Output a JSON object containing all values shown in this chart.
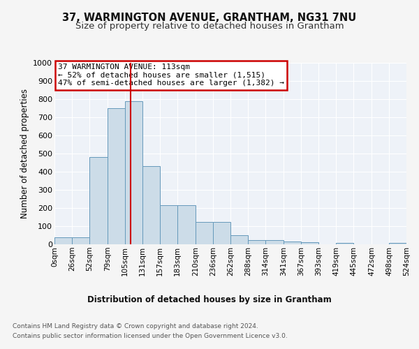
{
  "title": "37, WARMINGTON AVENUE, GRANTHAM, NG31 7NU",
  "subtitle": "Size of property relative to detached houses in Grantham",
  "xlabel": "Distribution of detached houses by size in Grantham",
  "ylabel": "Number of detached properties",
  "bin_edges": [
    0,
    26,
    52,
    79,
    105,
    131,
    157,
    183,
    210,
    236,
    262,
    288,
    314,
    341,
    367,
    393,
    419,
    445,
    472,
    498,
    524
  ],
  "bar_heights": [
    40,
    40,
    480,
    750,
    790,
    430,
    215,
    215,
    125,
    125,
    50,
    25,
    25,
    15,
    10,
    0,
    8,
    0,
    0,
    8
  ],
  "bar_color": "#ccdce8",
  "bar_edge_color": "#6699bb",
  "red_line_x": 113,
  "ylim": [
    0,
    1000
  ],
  "yticks": [
    0,
    100,
    200,
    300,
    400,
    500,
    600,
    700,
    800,
    900,
    1000
  ],
  "annotation_title": "37 WARMINGTON AVENUE: 113sqm",
  "annotation_line1": "← 52% of detached houses are smaller (1,515)",
  "annotation_line2": "47% of semi-detached houses are larger (1,382) →",
  "annotation_box_color": "#ffffff",
  "annotation_box_edge": "#cc0000",
  "footer_line1": "Contains HM Land Registry data © Crown copyright and database right 2024.",
  "footer_line2": "Contains public sector information licensed under the Open Government Licence v3.0.",
  "bg_color": "#eef2f8",
  "grid_color": "#ffffff",
  "title_fontsize": 10.5,
  "subtitle_fontsize": 9.5,
  "tick_labels": [
    "0sqm",
    "26sqm",
    "52sqm",
    "79sqm",
    "105sqm",
    "131sqm",
    "157sqm",
    "183sqm",
    "210sqm",
    "236sqm",
    "262sqm",
    "288sqm",
    "314sqm",
    "341sqm",
    "367sqm",
    "393sqm",
    "419sqm",
    "445sqm",
    "472sqm",
    "498sqm",
    "524sqm"
  ]
}
